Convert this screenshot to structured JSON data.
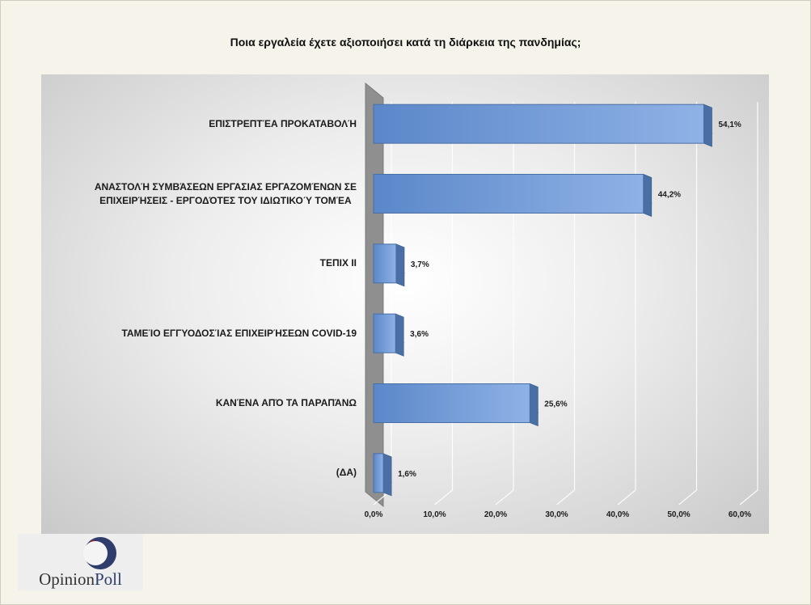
{
  "chart_data": {
    "type": "bar",
    "orientation": "horizontal",
    "title": "Ποια εργαλεία έχετε αξιοποιήσει κατά τη διάρκεια της πανδημίας;",
    "categories": [
      [
        "ΕΠΙΣΤΡΕΠΤΈΑ ΠΡΟΚΑΤΑΒΟΛΉ"
      ],
      [
        "ΑΝΑΣΤΟΛΉ ΣΥΜΒΆΣΕΩΝ ΕΡΓΑΣΙΑΣ ΕΡΓΑΖΟΜΈΝΩΝ ΣΕ",
        "ΕΠΙΧΕΙΡΉΣΕΙΣ - ΕΡΓΟΔΌΤΕΣ ΤΟΥ ΙΔΙΩΤΙΚΟΎ ΤΟΜΈΑ"
      ],
      [
        "ΤΕΠΙΧ ΙΙ"
      ],
      [
        "ΤΑΜΕΊΟ ΕΓΓΥΟΔΟΣΊΑΣ ΕΠΙΧΕΙΡΉΣΕΩΝ COVID-19"
      ],
      [
        "ΚΑΝΈΝΑ ΑΠΌ ΤΑ ΠΑΡΑΠΆΝΩ"
      ],
      [
        "(ΔΑ)"
      ]
    ],
    "values": [
      54.1,
      44.2,
      3.7,
      3.6,
      25.6,
      1.6
    ],
    "value_labels": [
      "54,1%",
      "44,2%",
      "3,7%",
      "3,6%",
      "25,6%",
      "1,6%"
    ],
    "xlim": [
      0,
      60
    ],
    "ticks": [
      0,
      10,
      20,
      30,
      40,
      50,
      60
    ],
    "tick_labels": [
      "0,0%",
      "10,0%",
      "20,0%",
      "30,0%",
      "40,0%",
      "50,0%",
      "60,0%"
    ],
    "grid": true,
    "bar_color": "#5b87c9",
    "bar_top_color": "#3d5f8f",
    "bar_side_color": "#4a6fa5"
  },
  "logo": {
    "text_a": "Opinion",
    "text_b": "Poll",
    "color_red": "#a81c22",
    "color_blue": "#2e3d6b"
  }
}
